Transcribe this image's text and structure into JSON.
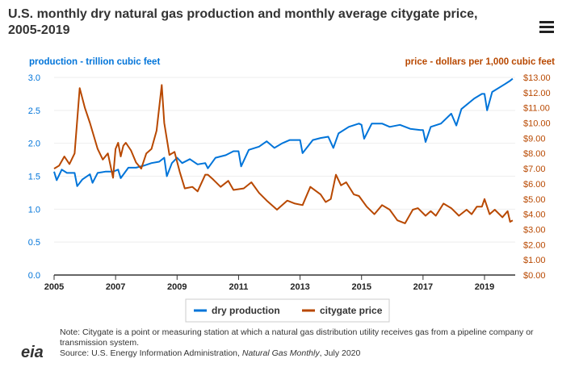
{
  "title": "U.S. monthly dry natural gas production and monthly average citygate price, 2005-2019",
  "logo": "eia",
  "note": "Note: Citygate is a point or measuring station at which a natural gas distribution utility receives gas from a pipeline company or transmission system.",
  "source_prefix": "Source: U.S. Energy Information Administration, ",
  "source_pub": "Natural Gas Monthly",
  "source_suffix": ", July 2020",
  "colors": {
    "production": "#0074d9",
    "price": "#b84800"
  },
  "chart_data": {
    "type": "line",
    "ylabel": "production - trillion cubic feet",
    "y2label": "price - dollars per 1,000 cubic feet",
    "ylim": [
      0,
      3.0
    ],
    "y2lim": [
      0,
      13
    ],
    "yticks": [
      "0.0",
      "0.5",
      "1.0",
      "1.5",
      "2.0",
      "2.5",
      "3.0"
    ],
    "y2ticks": [
      "$0.00",
      "$1.00",
      "$2.00",
      "$3.00",
      "$4.00",
      "$5.00",
      "$6.00",
      "$7.00",
      "$8.00",
      "$9.00",
      "$10.00",
      "$11.00",
      "$12.00",
      "$13.00"
    ],
    "xticks": [
      "2005",
      "2007",
      "2009",
      "2011",
      "2013",
      "2015",
      "2017",
      "2019"
    ],
    "grid": true,
    "legend": "bottom",
    "series": [
      {
        "name": "dry production",
        "axis": "left",
        "points": [
          [
            "2005-01",
            1.57
          ],
          [
            "2005-02",
            1.44
          ],
          [
            "2005-04",
            1.6
          ],
          [
            "2005-06",
            1.55
          ],
          [
            "2005-09",
            1.55
          ],
          [
            "2005-10",
            1.35
          ],
          [
            "2005-12",
            1.45
          ],
          [
            "2006-03",
            1.53
          ],
          [
            "2006-04",
            1.4
          ],
          [
            "2006-06",
            1.55
          ],
          [
            "2006-09",
            1.57
          ],
          [
            "2006-12",
            1.57
          ],
          [
            "2007-02",
            1.6
          ],
          [
            "2007-03",
            1.47
          ],
          [
            "2007-06",
            1.63
          ],
          [
            "2007-09",
            1.63
          ],
          [
            "2007-12",
            1.66
          ],
          [
            "2008-03",
            1.7
          ],
          [
            "2008-06",
            1.72
          ],
          [
            "2008-08",
            1.78
          ],
          [
            "2008-09",
            1.5
          ],
          [
            "2008-11",
            1.7
          ],
          [
            "2009-01",
            1.78
          ],
          [
            "2009-03",
            1.7
          ],
          [
            "2009-06",
            1.76
          ],
          [
            "2009-09",
            1.68
          ],
          [
            "2009-12",
            1.7
          ],
          [
            "2010-01",
            1.62
          ],
          [
            "2010-04",
            1.78
          ],
          [
            "2010-08",
            1.82
          ],
          [
            "2010-11",
            1.88
          ],
          [
            "2011-01",
            1.88
          ],
          [
            "2011-02",
            1.65
          ],
          [
            "2011-05",
            1.9
          ],
          [
            "2011-09",
            1.95
          ],
          [
            "2011-12",
            2.03
          ],
          [
            "2012-03",
            1.93
          ],
          [
            "2012-06",
            2.0
          ],
          [
            "2012-09",
            2.05
          ],
          [
            "2012-12",
            2.05
          ],
          [
            "2013-01",
            2.05
          ],
          [
            "2013-02",
            1.85
          ],
          [
            "2013-06",
            2.05
          ],
          [
            "2013-09",
            2.08
          ],
          [
            "2013-12",
            2.1
          ],
          [
            "2014-02",
            1.93
          ],
          [
            "2014-04",
            2.15
          ],
          [
            "2014-08",
            2.25
          ],
          [
            "2014-12",
            2.3
          ],
          [
            "2015-01",
            2.28
          ],
          [
            "2015-02",
            2.07
          ],
          [
            "2015-05",
            2.3
          ],
          [
            "2015-09",
            2.3
          ],
          [
            "2015-12",
            2.25
          ],
          [
            "2016-04",
            2.28
          ],
          [
            "2016-08",
            2.22
          ],
          [
            "2016-12",
            2.2
          ],
          [
            "2017-01",
            2.2
          ],
          [
            "2017-02",
            2.02
          ],
          [
            "2017-04",
            2.25
          ],
          [
            "2017-08",
            2.3
          ],
          [
            "2017-12",
            2.45
          ],
          [
            "2018-02",
            2.27
          ],
          [
            "2018-04",
            2.52
          ],
          [
            "2018-09",
            2.68
          ],
          [
            "2018-12",
            2.75
          ],
          [
            "2019-01",
            2.75
          ],
          [
            "2019-02",
            2.5
          ],
          [
            "2019-04",
            2.78
          ],
          [
            "2019-09",
            2.9
          ],
          [
            "2019-11",
            2.95
          ],
          [
            "2019-12",
            2.98
          ]
        ]
      },
      {
        "name": "citygate price",
        "axis": "right",
        "points": [
          [
            "2005-01",
            7.0
          ],
          [
            "2005-03",
            7.2
          ],
          [
            "2005-05",
            7.8
          ],
          [
            "2005-07",
            7.3
          ],
          [
            "2005-09",
            8.0
          ],
          [
            "2005-11",
            12.3
          ],
          [
            "2006-01",
            11.0
          ],
          [
            "2006-03",
            10.0
          ],
          [
            "2006-06",
            8.3
          ],
          [
            "2006-08",
            7.6
          ],
          [
            "2006-10",
            8.0
          ],
          [
            "2006-12",
            6.4
          ],
          [
            "2007-01",
            8.3
          ],
          [
            "2007-02",
            8.7
          ],
          [
            "2007-03",
            7.8
          ],
          [
            "2007-04",
            8.5
          ],
          [
            "2007-05",
            8.7
          ],
          [
            "2007-07",
            8.2
          ],
          [
            "2007-09",
            7.4
          ],
          [
            "2007-11",
            7.0
          ],
          [
            "2008-01",
            8.0
          ],
          [
            "2008-03",
            8.3
          ],
          [
            "2008-05",
            9.5
          ],
          [
            "2008-07",
            12.5
          ],
          [
            "2008-08",
            10.0
          ],
          [
            "2008-10",
            7.9
          ],
          [
            "2008-12",
            8.1
          ],
          [
            "2009-02",
            6.8
          ],
          [
            "2009-04",
            5.7
          ],
          [
            "2009-07",
            5.8
          ],
          [
            "2009-09",
            5.5
          ],
          [
            "2009-12",
            6.6
          ],
          [
            "2010-01",
            6.6
          ],
          [
            "2010-03",
            6.3
          ],
          [
            "2010-06",
            5.8
          ],
          [
            "2010-09",
            6.2
          ],
          [
            "2010-11",
            5.6
          ],
          [
            "2011-03",
            5.7
          ],
          [
            "2011-06",
            6.1
          ],
          [
            "2011-09",
            5.4
          ],
          [
            "2011-12",
            4.9
          ],
          [
            "2012-04",
            4.3
          ],
          [
            "2012-08",
            4.9
          ],
          [
            "2012-11",
            4.7
          ],
          [
            "2013-02",
            4.6
          ],
          [
            "2013-05",
            5.8
          ],
          [
            "2013-09",
            5.3
          ],
          [
            "2013-11",
            4.8
          ],
          [
            "2014-01",
            5.0
          ],
          [
            "2014-03",
            6.6
          ],
          [
            "2014-05",
            5.9
          ],
          [
            "2014-07",
            6.1
          ],
          [
            "2014-10",
            5.3
          ],
          [
            "2014-12",
            5.2
          ],
          [
            "2015-03",
            4.5
          ],
          [
            "2015-06",
            4.0
          ],
          [
            "2015-09",
            4.6
          ],
          [
            "2015-12",
            4.3
          ],
          [
            "2016-03",
            3.6
          ],
          [
            "2016-06",
            3.4
          ],
          [
            "2016-09",
            4.3
          ],
          [
            "2016-11",
            4.4
          ],
          [
            "2017-02",
            3.9
          ],
          [
            "2017-04",
            4.2
          ],
          [
            "2017-06",
            3.9
          ],
          [
            "2017-09",
            4.7
          ],
          [
            "2017-12",
            4.4
          ],
          [
            "2018-03",
            3.9
          ],
          [
            "2018-06",
            4.3
          ],
          [
            "2018-08",
            4.0
          ],
          [
            "2018-10",
            4.5
          ],
          [
            "2018-12",
            4.5
          ],
          [
            "2019-01",
            5.0
          ],
          [
            "2019-03",
            4.0
          ],
          [
            "2019-05",
            4.3
          ],
          [
            "2019-08",
            3.8
          ],
          [
            "2019-10",
            4.2
          ],
          [
            "2019-11",
            3.5
          ],
          [
            "2019-12",
            3.6
          ]
        ]
      }
    ]
  }
}
